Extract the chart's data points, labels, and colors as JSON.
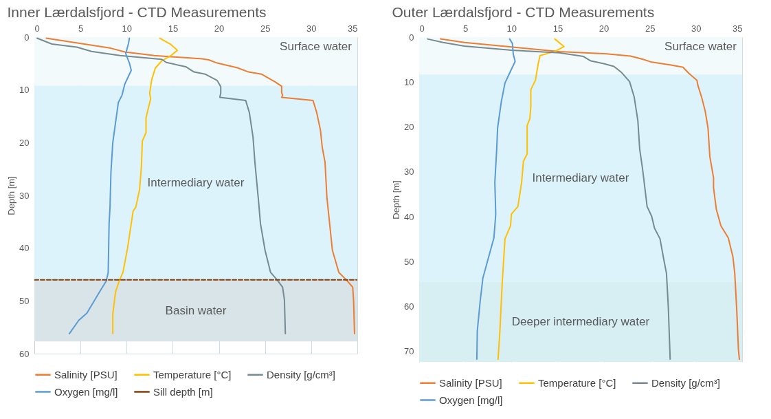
{
  "chart_data": [
    {
      "type": "line",
      "title": "Inner Lærdalsfjord - CTD Measurements",
      "ylabel": "Depth [m]",
      "xlim": [
        0,
        35
      ],
      "xticks": [
        0,
        5,
        10,
        15,
        20,
        25,
        30,
        35
      ],
      "ylim": [
        60,
        0
      ],
      "yticks": [
        0,
        10,
        20,
        30,
        40,
        50,
        60
      ],
      "grid": true,
      "legend": "bottom",
      "bands": [
        {
          "axis": "y",
          "from": 0,
          "to": 9.2,
          "color": "#f3fafc",
          "label": "Surface water"
        },
        {
          "axis": "y",
          "from": 9.2,
          "to": 46,
          "color": "#dcf3fb",
          "label": "Intermediary water"
        },
        {
          "axis": "y",
          "from": 46,
          "to": 57.7,
          "color": "#d8e4e8",
          "label": "Basin water"
        }
      ],
      "series": [
        {
          "name": "Salinity [PSU]",
          "type": "line",
          "color": "#ed7d31",
          "x": [
            1.3,
            8.3,
            9.8,
            13,
            18.2,
            18.9,
            19.8,
            22,
            23.2,
            24.6,
            26.1,
            26.8,
            26.8,
            26.9,
            26.8,
            30.2,
            30.6,
            31,
            31.2,
            31.5,
            31.7,
            32.3,
            33,
            33.8,
            34.5,
            34.6,
            34.7
          ],
          "values": [
            0.2,
            2.1,
            2.8,
            3.5,
            4.1,
            4.3,
            4.9,
            5.8,
            6.6,
            7,
            8.5,
            9.3,
            10.5,
            11,
            11.4,
            12,
            14.3,
            17.6,
            20.9,
            23.7,
            30.3,
            40.4,
            44.6,
            46,
            47.4,
            50.2,
            56.2
          ]
        },
        {
          "name": "Temperature [°C]",
          "type": "line",
          "color": "#ffc000",
          "x": [
            13.6,
            14.8,
            15.5,
            14.8,
            13.8,
            13.1,
            12.7,
            12.5,
            12.6,
            12.1,
            12.1,
            11.7,
            11.6,
            11.4,
            11,
            10.7,
            10.1,
            9.6,
            9.2,
            8.8,
            8.5,
            8.5
          ],
          "values": [
            0.2,
            1.4,
            2.5,
            3.5,
            4.5,
            5.9,
            8.2,
            10.6,
            11.7,
            15.3,
            18.1,
            19.7,
            24.6,
            28.9,
            32.2,
            33,
            40,
            44.6,
            46.2,
            48.3,
            52.5,
            56.2
          ]
        },
        {
          "name": "Density [g/cm³]",
          "type": "line",
          "color": "#758a91",
          "x": [
            0.3,
            1.9,
            4.6,
            6.2,
            9.3,
            13.8,
            14.3,
            16.4,
            17.3,
            18.5,
            19.8,
            20.2,
            20.2,
            20.1,
            22.9,
            23.3,
            23.7,
            23.9,
            24.3,
            24.5,
            25,
            25.6,
            26.3,
            26.9,
            27.1,
            27.2
          ],
          "values": [
            0.2,
            1.3,
            1.9,
            2.7,
            3.5,
            4.2,
            4.8,
            5.6,
            6.6,
            7,
            8.2,
            9.4,
            10.6,
            11.4,
            12,
            14.3,
            19,
            23.7,
            31.2,
            35.3,
            40.4,
            44.6,
            46,
            47.4,
            49.8,
            56.2
          ]
        },
        {
          "name": "Oxygen [mg/l]",
          "type": "line",
          "color": "#5b9bd5",
          "x": [
            10.3,
            10.2,
            9.9,
            10.3,
            10.5,
            9.8,
            9.5,
            9.1,
            8.8,
            8.5,
            8.3,
            8.2,
            8.1,
            8,
            7.8,
            7.2,
            5.7,
            4.8,
            3.8
          ],
          "values": [
            0.2,
            1.2,
            3.1,
            4.9,
            6.3,
            8.9,
            11,
            12.4,
            16.2,
            20,
            25.6,
            32.2,
            35.3,
            44.6,
            46.2,
            47.9,
            52.3,
            53.7,
            56.2
          ]
        },
        {
          "name": "Sill depth [m]",
          "type": "line",
          "color": "#843c0c",
          "line_style": "dashed",
          "x": [
            0,
            35
          ],
          "values": [
            46,
            46
          ]
        }
      ]
    },
    {
      "type": "line",
      "title": "Outer Lærdalsfjord - CTD Measurements",
      "ylabel": "Depth [m]",
      "xlim": [
        0,
        35
      ],
      "xticks": [
        0,
        5,
        10,
        15,
        20,
        25,
        30,
        35
      ],
      "ylim": [
        72.3,
        0
      ],
      "yticks": [
        0,
        10,
        20,
        30,
        40,
        50,
        60,
        70
      ],
      "grid": true,
      "legend": "bottom",
      "bands": [
        {
          "axis": "y",
          "from": 0,
          "to": 8.3,
          "color": "#f3fafc",
          "label": "Surface water"
        },
        {
          "axis": "y",
          "from": 8.3,
          "to": 54.5,
          "color": "#dcf3fb",
          "label": "Intermediary water"
        },
        {
          "axis": "y",
          "from": 54.5,
          "to": 72.3,
          "color": "#d7eef2",
          "label": "Deeper intermediary water"
        }
      ],
      "series": [
        {
          "name": "Salinity [PSU]",
          "type": "line",
          "color": "#ed7d31",
          "x": [
            2.3,
            4.9,
            10,
            15.2,
            20.3,
            22.9,
            24.2,
            25.1,
            27.3,
            28.6,
            29.2,
            30.1,
            30.2,
            30.6,
            31,
            31.3,
            31.5,
            31.9,
            31.9,
            32.2,
            32.7,
            33.5,
            34,
            34.2,
            34.4,
            34.6,
            34.7
          ],
          "values": [
            0.4,
            1.2,
            2.2,
            3.2,
            3.7,
            4.2,
            4.9,
            5.5,
            6.2,
            6.7,
            8,
            9.6,
            10.7,
            13.3,
            16.5,
            20.2,
            26.6,
            31.3,
            33.5,
            38.3,
            42,
            44.7,
            48.9,
            52.6,
            60.1,
            69.6,
            71.7
          ]
        },
        {
          "name": "Temperature [°C]",
          "type": "line",
          "color": "#ffc000",
          "x": [
            14.7,
            15.7,
            14.7,
            13.1,
            12.9,
            12.6,
            12.1,
            12.1,
            12,
            11.7,
            11.7,
            11.3,
            11.1,
            10.7,
            10,
            9.9,
            9.3,
            9,
            8.75,
            8.55
          ],
          "values": [
            0.4,
            2.1,
            3.2,
            4.1,
            5.9,
            9.6,
            11.7,
            15.4,
            18.1,
            19.7,
            26,
            27.6,
            32.4,
            37.7,
            39.4,
            42,
            44.9,
            54.7,
            65.4,
            71.7
          ]
        },
        {
          "name": "Density [g/cm³]",
          "type": "line",
          "color": "#758a91",
          "x": [
            0.9,
            2.6,
            4.9,
            10,
            15.2,
            17.8,
            18.6,
            20,
            21.1,
            21.9,
            22.8,
            23.3,
            23.7,
            23.9,
            24.2,
            24.7,
            25.2,
            25.5,
            26.1,
            26.5,
            26.8,
            27,
            27.2
          ],
          "values": [
            0.4,
            1.2,
            2,
            2.9,
            3.5,
            4.3,
            5.3,
            5.9,
            6.5,
            7.8,
            9.9,
            13.3,
            18.6,
            25,
            29.2,
            37.7,
            39.9,
            42.5,
            44.9,
            49.4,
            52.6,
            60.1,
            71.7
          ]
        },
        {
          "name": "Oxygen [mg/l]",
          "type": "line",
          "color": "#5b9bd5",
          "x": [
            9.8,
            10.1,
            10.2,
            10.4,
            9.8,
            9.3,
            8.9,
            8.5,
            8.4,
            8.2,
            8.3,
            8.1,
            7.6,
            6.9,
            6.6,
            6.3,
            6.25
          ],
          "values": [
            0.4,
            1.4,
            3.8,
            5.4,
            8,
            10.2,
            14.4,
            20.2,
            25,
            32.4,
            39.4,
            44.7,
            48.4,
            53.7,
            59,
            65.4,
            71.7
          ]
        }
      ]
    }
  ]
}
